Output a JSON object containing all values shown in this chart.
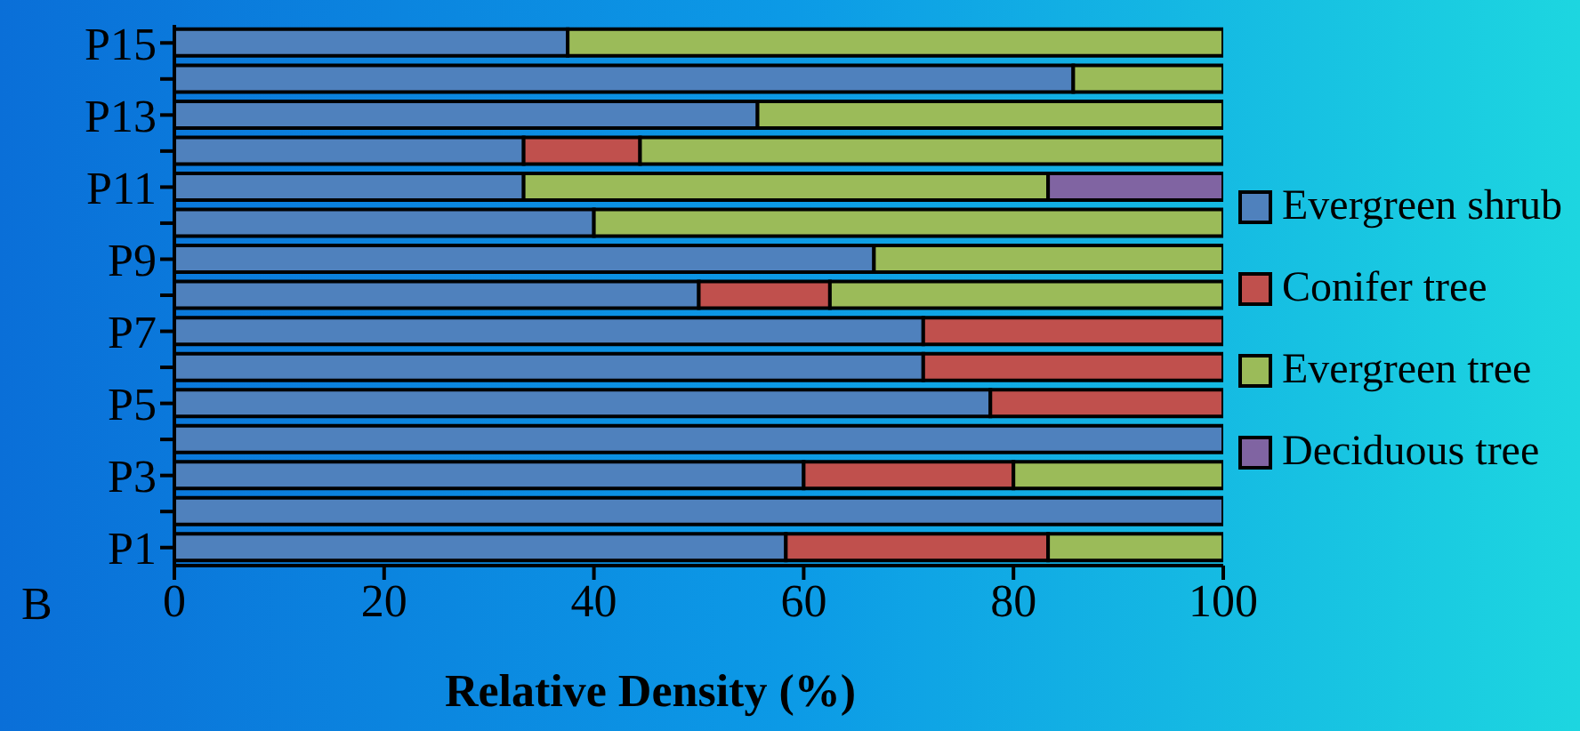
{
  "chart_data": {
    "type": "bar",
    "orientation": "horizontal",
    "stacked": true,
    "xlabel": "Relative Density (%)",
    "categories": [
      "P15",
      null,
      "P13",
      null,
      "P11",
      null,
      "P9",
      null,
      "P7",
      null,
      "P5",
      null,
      "P3",
      null,
      "P1"
    ],
    "series": [
      {
        "name": "Evergreen shrub",
        "color": "#4f81bd",
        "values": [
          37.5,
          85.7,
          55.6,
          33.3,
          33.3,
          40,
          66.7,
          50,
          71.4,
          71.4,
          77.8,
          100,
          60,
          100,
          58.3
        ]
      },
      {
        "name": "Conifer tree",
        "color": "#c0504d",
        "values": [
          null,
          null,
          null,
          11.1,
          null,
          null,
          null,
          12.5,
          28.6,
          28.6,
          22.2,
          null,
          20,
          null,
          25
        ]
      },
      {
        "name": "Evergreen tree",
        "color": "#9bbb59",
        "values": [
          62.5,
          14.3,
          44.4,
          55.6,
          50,
          60,
          33.3,
          37.5,
          null,
          null,
          null,
          null,
          20,
          null,
          16.7
        ]
      },
      {
        "name": "Deciduous tree",
        "color": "#8064a2",
        "values": [
          null,
          null,
          null,
          null,
          16.7,
          null,
          null,
          null,
          null,
          null,
          null,
          null,
          null,
          null,
          null
        ]
      }
    ],
    "xlim": [
      0,
      100
    ],
    "xticks": [
      0,
      20,
      40,
      60,
      80,
      100
    ],
    "legend": "right",
    "grid": false,
    "annotations": [
      "B"
    ]
  }
}
